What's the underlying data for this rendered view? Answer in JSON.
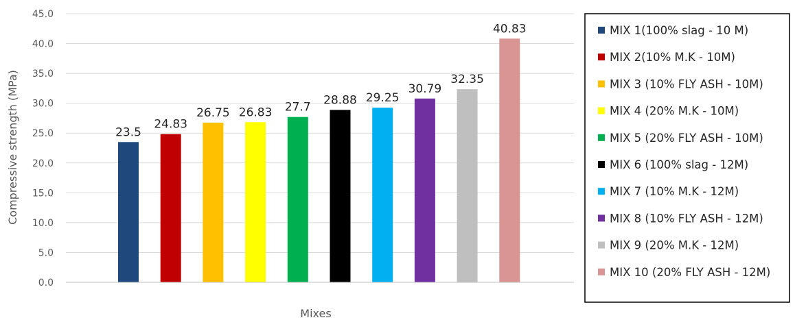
{
  "chart_data": {
    "type": "bar",
    "title": "",
    "xlabel": "Mixes",
    "ylabel": "Compressive strength (MPa)",
    "ylim": [
      0,
      45
    ],
    "ytick_step": 5,
    "yticks": [
      "0.0",
      "5.0",
      "10.0",
      "15.0",
      "20.0",
      "25.0",
      "30.0",
      "35.0",
      "40.0",
      "45.0"
    ],
    "grid": true,
    "legend_position": "right",
    "categories": [
      "MIX 1(100% slag - 10 M)",
      "MIX 2(10% M.K - 10M)",
      "MIX 3 (10% FLY ASH - 10M)",
      "MIX 4 (20% M.K - 10M)",
      "MIX 5 (20% FLY ASH - 10M)",
      "MIX 6 (100% slag - 12M)",
      "MIX 7 (10% M.K - 12M)",
      "MIX 8 (10% FLY ASH - 12M)",
      "MIX 9 (20% M.K - 12M)",
      "MIX 10 (20% FLY ASH - 12M)"
    ],
    "values": [
      23.5,
      24.83,
      26.75,
      26.83,
      27.7,
      28.88,
      29.25,
      30.79,
      32.35,
      40.83
    ],
    "data_labels": [
      "23.5",
      "24.83",
      "26.75",
      "26.83",
      "27.7",
      "28.88",
      "29.25",
      "30.79",
      "32.35",
      "40.83"
    ],
    "colors": [
      "#1f497d",
      "#c00000",
      "#ffc000",
      "#ffff00",
      "#00b050",
      "#000000",
      "#00b0f0",
      "#7030a0",
      "#bfbfbf",
      "#d99594"
    ]
  }
}
